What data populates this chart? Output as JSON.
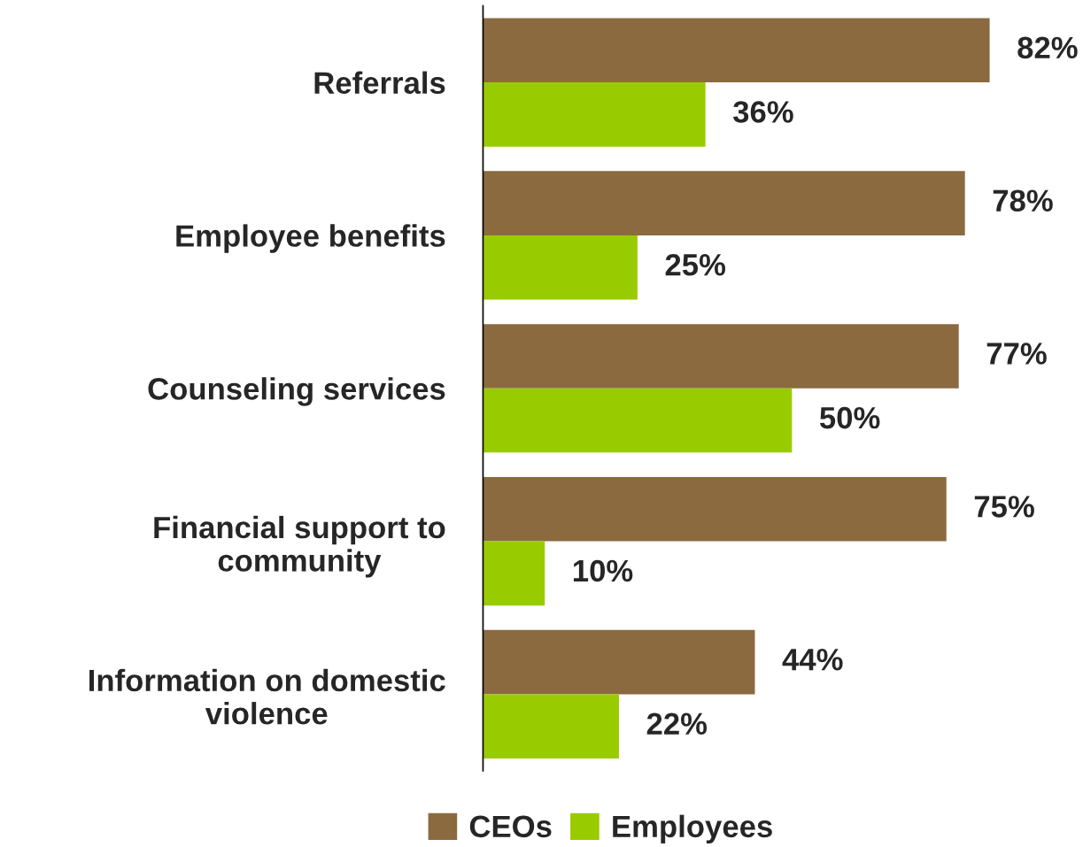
{
  "chart_data": {
    "type": "bar",
    "orientation": "horizontal",
    "categories": [
      "Referrals",
      "Employee benefits",
      "Counseling services",
      "Financial support to\ncommunity",
      "Information on domestic\nviolence"
    ],
    "series": [
      {
        "name": "CEOs",
        "color": "#8b6a40",
        "values": [
          82,
          78,
          77,
          75,
          44
        ],
        "value_labels": [
          "82%",
          "78%",
          "77%",
          "75%",
          "44%"
        ]
      },
      {
        "name": "Employees",
        "color": "#99cc00",
        "values": [
          36,
          25,
          50,
          10,
          22
        ],
        "value_labels": [
          "36%",
          "25%",
          "50%",
          "10%",
          "22%"
        ]
      }
    ],
    "legend": "bottom",
    "grid": false
  }
}
